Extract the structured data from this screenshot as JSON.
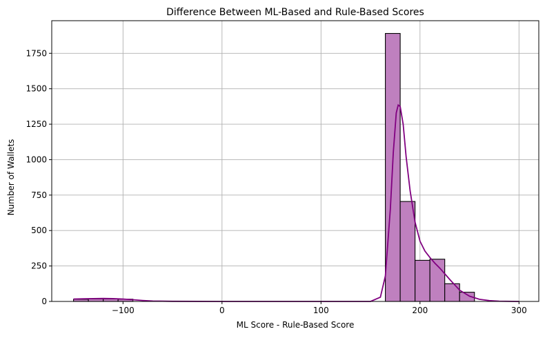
{
  "chart_data": {
    "type": "bar",
    "title": "Difference Between ML-Based and Rule-Based Scores",
    "xlabel": "ML Score - Rule-Based Score",
    "ylabel": "Number of Wallets",
    "xlim": [
      -172,
      320
    ],
    "ylim": [
      0,
      1980
    ],
    "xticks": [
      -100,
      0,
      100,
      200,
      300
    ],
    "yticks": [
      0,
      250,
      500,
      750,
      1000,
      1250,
      1500,
      1750
    ],
    "grid": true,
    "bin_width": 15,
    "bins": [
      {
        "start": -150,
        "end": -135,
        "count": 15
      },
      {
        "start": -135,
        "end": -120,
        "count": 18
      },
      {
        "start": -120,
        "end": -105,
        "count": 18
      },
      {
        "start": -105,
        "end": -90,
        "count": 16
      },
      {
        "start": 165,
        "end": 180,
        "count": 1890
      },
      {
        "start": 180,
        "end": 195,
        "count": 705
      },
      {
        "start": 195,
        "end": 210,
        "count": 290
      },
      {
        "start": 210,
        "end": 225,
        "count": 298
      },
      {
        "start": 225,
        "end": 240,
        "count": 125
      },
      {
        "start": 240,
        "end": 255,
        "count": 65
      }
    ],
    "kde": {
      "x": [
        -150,
        -140,
        -130,
        -120,
        -110,
        -100,
        -90,
        -80,
        -70,
        -50,
        0,
        100,
        150,
        160,
        165,
        170,
        173,
        176,
        178,
        180,
        183,
        186,
        190,
        195,
        200,
        205,
        210,
        215,
        220,
        225,
        230,
        240,
        250,
        260,
        270,
        280,
        300
      ],
      "y": [
        17,
        19,
        20,
        21,
        20,
        17,
        12,
        7,
        3,
        1,
        0,
        0,
        0,
        30,
        180,
        650,
        1050,
        1330,
        1385,
        1375,
        1250,
        1020,
        780,
        560,
        425,
        355,
        310,
        270,
        235,
        195,
        155,
        80,
        37,
        15,
        6,
        2,
        0
      ]
    },
    "colors": {
      "bar_fill": "#bf80bf",
      "bar_edge": "#000000",
      "kde_line": "#800080",
      "grid": "#b0b0b0"
    }
  }
}
